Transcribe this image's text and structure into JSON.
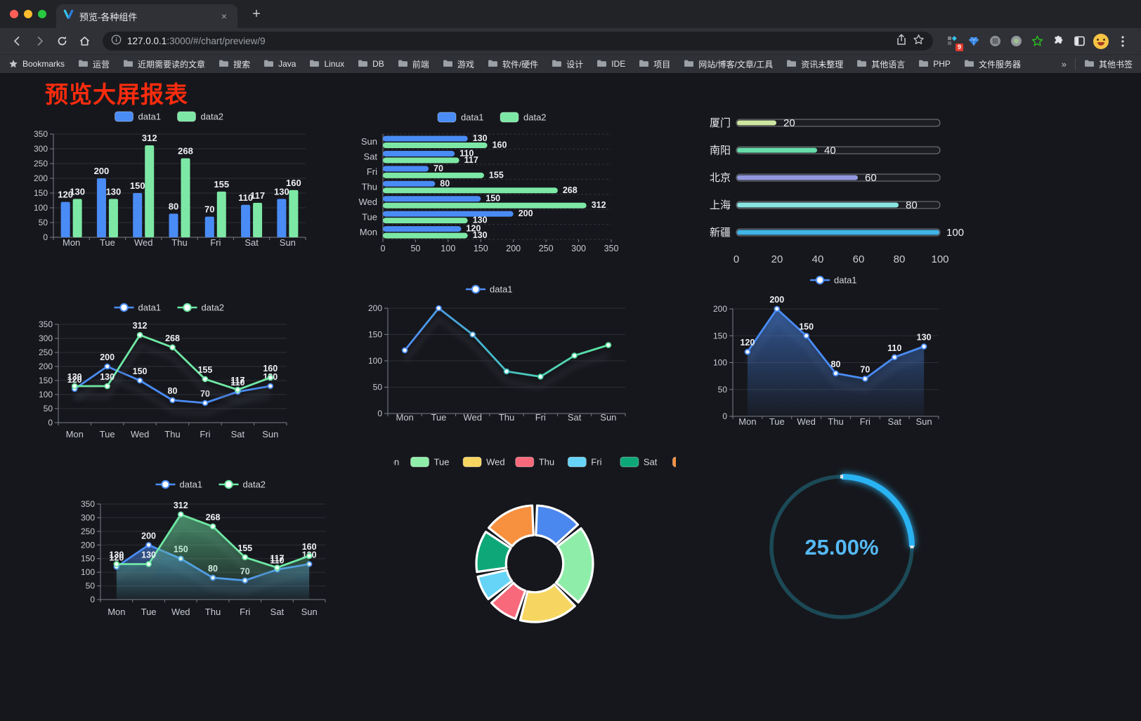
{
  "browser": {
    "tab": {
      "title": "预览-各种组件"
    },
    "url": {
      "host": "127.0.0.1",
      "rest": ":3000/#/chart/preview/9"
    },
    "new_tab_label": "+",
    "tab_close_label": "×",
    "bookmarks_label": "Bookmarks",
    "bookmarks": [
      "运营",
      "近期需要读的文章",
      "搜索",
      "Java",
      "Linux",
      "DB",
      "前端",
      "游戏",
      "软件/硬件",
      "设计",
      "IDE",
      "项目",
      "网站/博客/文章/工具",
      "资讯未整理",
      "其他语言",
      "PHP",
      "文件服务器"
    ],
    "bookmarks_overflow": "»",
    "other_bookmarks": "其他书签",
    "extension_badge": "9"
  },
  "page": {
    "title": "预览大屏报表",
    "title_color": "#fd2c0e",
    "background": "#16171c"
  },
  "chart_data": [
    {
      "id": "bar-vertical",
      "type": "bar",
      "legend_position": "top",
      "grid": true,
      "categories": [
        "Mon",
        "Tue",
        "Wed",
        "Thu",
        "Fri",
        "Sat",
        "Sun"
      ],
      "series": [
        {
          "name": "data1",
          "color": "#4a8cf5",
          "values": [
            120,
            200,
            150,
            80,
            70,
            110,
            130
          ]
        },
        {
          "name": "data2",
          "color": "#7de8a6",
          "values": [
            130,
            130,
            312,
            268,
            155,
            117,
            160
          ]
        }
      ],
      "ylim": [
        0,
        350
      ],
      "ytick": 50,
      "data_labels": true
    },
    {
      "id": "bar-horizontal",
      "type": "bar-horizontal",
      "legend_position": "top",
      "categories": [
        "Mon",
        "Tue",
        "Wed",
        "Thu",
        "Fri",
        "Sat",
        "Sun"
      ],
      "display_order": "Sun-top",
      "series": [
        {
          "name": "data1",
          "color": "#4a8cf5",
          "values": [
            120,
            200,
            150,
            80,
            70,
            110,
            130
          ]
        },
        {
          "name": "data2",
          "color": "#7de8a6",
          "values": [
            130,
            130,
            312,
            268,
            155,
            117,
            160
          ]
        }
      ],
      "xlim": [
        0,
        350
      ],
      "xtick": 50,
      "data_labels": true
    },
    {
      "id": "city-progress",
      "type": "progress",
      "max": 100,
      "items": [
        {
          "label": "厦门",
          "value": 20,
          "color": "#cfe7a2"
        },
        {
          "label": "南阳",
          "value": 40,
          "color": "#66dcaa"
        },
        {
          "label": "北京",
          "value": 60,
          "color": "#9398de"
        },
        {
          "label": "上海",
          "value": 80,
          "color": "#89e4e2"
        },
        {
          "label": "新疆",
          "value": 100,
          "color": "#40b5e6"
        }
      ],
      "axis_ticks": [
        0,
        20,
        40,
        60,
        80,
        100
      ]
    },
    {
      "id": "line-two-series",
      "type": "line",
      "legend_position": "top",
      "legend_marker": "line-dot",
      "categories": [
        "Mon",
        "Tue",
        "Wed",
        "Thu",
        "Fri",
        "Sat",
        "Sun"
      ],
      "series": [
        {
          "name": "data1",
          "color": "#4a8cf5",
          "values": [
            120,
            200,
            150,
            80,
            70,
            110,
            130
          ]
        },
        {
          "name": "data2",
          "color": "#6fe8a5",
          "values": [
            130,
            130,
            312,
            268,
            155,
            117,
            160
          ]
        }
      ],
      "ylim": [
        0,
        350
      ],
      "ytick": 50,
      "data_labels": true
    },
    {
      "id": "line-gradient",
      "type": "line-gradient",
      "legend_position": "top",
      "categories": [
        "Mon",
        "Tue",
        "Wed",
        "Thu",
        "Fri",
        "Sat",
        "Sun"
      ],
      "series": [
        {
          "name": "data1",
          "values": [
            120,
            200,
            150,
            80,
            70,
            110,
            130
          ],
          "gradient": [
            "#4e8ef7",
            "#45c0c4",
            "#5ce6a2"
          ],
          "point_colors": [
            "#4e8ef7",
            "#4e8ef7",
            "#4a9fe0",
            "#41c2c0",
            "#4cd5ad",
            "#55dfa4",
            "#5de7a0"
          ]
        }
      ],
      "ylim": [
        0,
        200
      ],
      "ytick": 50,
      "data_labels": false
    },
    {
      "id": "line-area",
      "type": "area",
      "legend_position": "top",
      "categories": [
        "Mon",
        "Tue",
        "Wed",
        "Thu",
        "Fri",
        "Sat",
        "Sun"
      ],
      "series": [
        {
          "name": "data1",
          "color": "#4a8cf5",
          "values": [
            120,
            200,
            150,
            80,
            70,
            110,
            130
          ]
        }
      ],
      "ylim": [
        0,
        200
      ],
      "ytick": 50,
      "data_labels": true
    },
    {
      "id": "area-two-series",
      "type": "area2",
      "legend_position": "top",
      "legend_marker": "line-dot",
      "categories": [
        "Mon",
        "Tue",
        "Wed",
        "Thu",
        "Fri",
        "Sat",
        "Sun"
      ],
      "series": [
        {
          "name": "data1",
          "color": "#4a8cf5",
          "values": [
            120,
            200,
            150,
            80,
            70,
            110,
            130
          ]
        },
        {
          "name": "data2",
          "color": "#6fe8a5",
          "values": [
            130,
            130,
            312,
            268,
            155,
            117,
            160
          ]
        }
      ],
      "ylim": [
        0,
        350
      ],
      "ytick": 50,
      "data_labels": true
    },
    {
      "id": "donut-week",
      "type": "pie",
      "legend_position": "top",
      "inner_radius_pct": 49,
      "items": [
        {
          "label": "Mon",
          "value": 120,
          "color": "#4a87ee"
        },
        {
          "label": "Tue",
          "value": 200,
          "color": "#8fedaa"
        },
        {
          "label": "Wed",
          "value": 150,
          "color": "#f6d660"
        },
        {
          "label": "Thu",
          "value": 80,
          "color": "#f8697b"
        },
        {
          "label": "Fri",
          "value": 70,
          "color": "#66d4f6"
        },
        {
          "label": "Sat",
          "value": 110,
          "color": "#0ea878"
        },
        {
          "label": "Sun",
          "value": 130,
          "color": "#f7903f"
        }
      ]
    },
    {
      "id": "gauge-percent",
      "type": "gauge",
      "value": 25,
      "max": 100,
      "label": "25.00%",
      "color": "#2bb3f3",
      "track_color": "#1c4956",
      "text_color": "#55b9f4"
    }
  ]
}
